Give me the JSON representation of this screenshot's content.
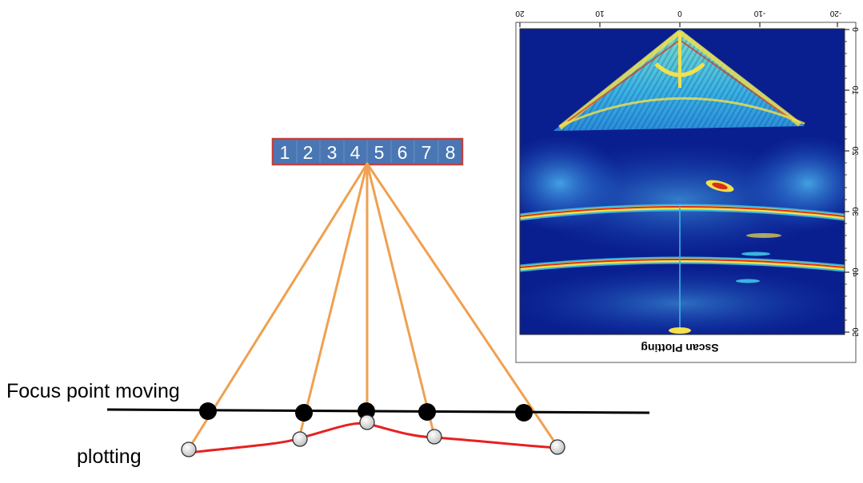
{
  "array": {
    "elements": [
      "1",
      "2",
      "3",
      "4",
      "5",
      "6",
      "7",
      "8"
    ]
  },
  "labels": {
    "focus": "Focus point moving",
    "plotting": "plotting"
  },
  "scan_plot": {
    "title": "Sscan Plotting",
    "x_ticks": [
      "20",
      "10",
      "0",
      "-10",
      "-20"
    ],
    "y_ticks": [
      "0",
      "10",
      "20",
      "30",
      "40",
      "50"
    ],
    "colors": {
      "background": "#0a1f8f",
      "high": "#d83018",
      "mid": "#f4e04a",
      "low": "#3ab4e0"
    }
  },
  "colors": {
    "ray": "#f0a050",
    "curve": "#e82020",
    "focus_line": "#000000",
    "array_fill": "#4a77b4",
    "array_border": "#c04040"
  }
}
